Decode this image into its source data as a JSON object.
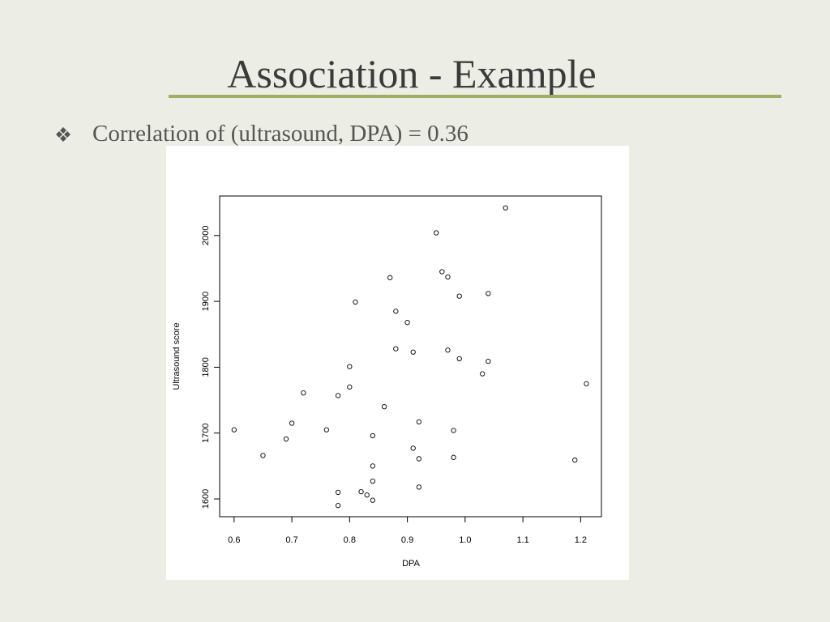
{
  "slide": {
    "title": "Association - Example",
    "bullet": "Correlation of (ultrasound, DPA) = 0.36"
  },
  "chart_data": {
    "type": "scatter",
    "xlabel": "DPA",
    "ylabel": "Ultrasound score",
    "color": "#000000",
    "x": [
      1.07,
      0.95,
      0.96,
      0.97,
      0.87,
      0.99,
      1.04,
      0.81,
      0.88,
      0.9,
      0.88,
      0.91,
      0.97,
      0.99,
      1.04,
      0.8,
      1.03,
      1.21,
      0.8,
      0.72,
      0.78,
      0.86,
      0.92,
      0.7,
      0.98,
      0.6,
      0.76,
      0.84,
      0.69,
      0.91,
      0.65,
      0.92,
      0.98,
      1.19,
      0.84,
      0.84,
      0.92,
      0.78,
      0.82,
      0.83,
      0.84,
      0.78
    ],
    "values": [
      2042,
      2004,
      1945,
      1937,
      1936,
      1908,
      1912,
      1899,
      1885,
      1868,
      1828,
      1823,
      1826,
      1813,
      1809,
      1801,
      1790,
      1775,
      1770,
      1761,
      1757,
      1740,
      1717,
      1715,
      1704,
      1705,
      1705,
      1696,
      1691,
      1677,
      1666,
      1661,
      1663,
      1659,
      1650,
      1627,
      1618,
      1610,
      1611,
      1606,
      1598,
      1590
    ],
    "xlim": [
      0.575,
      1.236
    ],
    "ylim": [
      1573,
      2060
    ],
    "xticks": [
      0.6,
      0.7,
      0.8,
      0.9,
      {
        "value": 1.0,
        "label": "1.0"
      },
      1.1,
      1.2
    ],
    "yticks": [
      1600,
      1700,
      1800,
      1900,
      2000
    ]
  }
}
